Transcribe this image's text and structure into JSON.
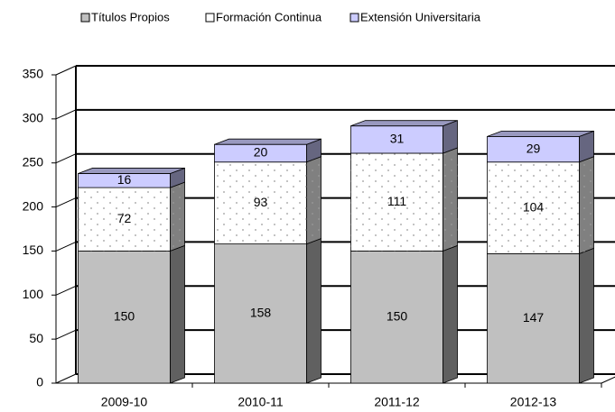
{
  "chart_data": {
    "type": "bar",
    "stacked": true,
    "categories": [
      "2009-10",
      "2010-11",
      "2011-12",
      "2012-13"
    ],
    "series": [
      {
        "name": "Títulos Propios",
        "color": "#c0c0c0",
        "values": [
          150,
          158,
          150,
          147
        ]
      },
      {
        "name": "Formación Continua",
        "color": "#ffffff",
        "values": [
          72,
          93,
          111,
          104
        ]
      },
      {
        "name": "Extensión Universitaria",
        "color": "#ccccff",
        "values": [
          16,
          20,
          31,
          29
        ]
      }
    ],
    "ylim": [
      0,
      350
    ],
    "yticks": [
      0,
      50,
      100,
      150,
      200,
      250,
      300,
      350
    ],
    "grid": true,
    "legend": "top"
  }
}
